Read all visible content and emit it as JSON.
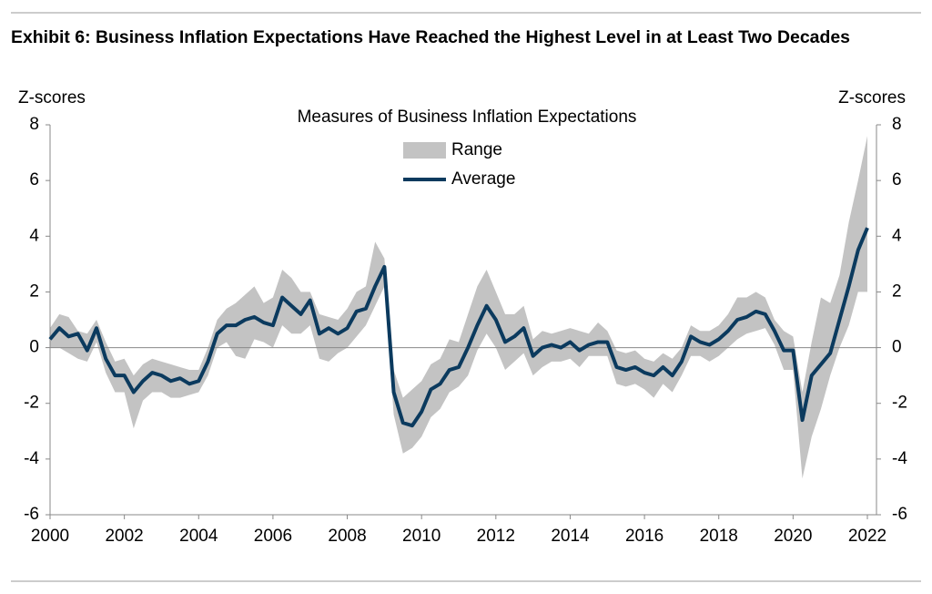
{
  "chart_data": {
    "type": "line",
    "title": "Exhibit 6: Business Inflation Expectations Have Reached the Highest Level in at Least Two Decades",
    "subtitle": "Measures of Business Inflation Expectations",
    "y_label": "Z-scores",
    "y2_label": "Z-scores",
    "x": [
      2000,
      2000.25,
      2000.5,
      2000.75,
      2001,
      2001.25,
      2001.5,
      2001.75,
      2002,
      2002.25,
      2002.5,
      2002.75,
      2003,
      2003.25,
      2003.5,
      2003.75,
      2004,
      2004.25,
      2004.5,
      2004.75,
      2005,
      2005.25,
      2005.5,
      2005.75,
      2006,
      2006.25,
      2006.5,
      2006.75,
      2007,
      2007.25,
      2007.5,
      2007.75,
      2008,
      2008.25,
      2008.5,
      2008.75,
      2009,
      2009.25,
      2009.5,
      2009.75,
      2010,
      2010.25,
      2010.5,
      2010.75,
      2011,
      2011.25,
      2011.5,
      2011.75,
      2012,
      2012.25,
      2012.5,
      2012.75,
      2013,
      2013.25,
      2013.5,
      2013.75,
      2014,
      2014.25,
      2014.5,
      2014.75,
      2015,
      2015.25,
      2015.5,
      2015.75,
      2016,
      2016.25,
      2016.5,
      2016.75,
      2017,
      2017.25,
      2017.5,
      2017.75,
      2018,
      2018.25,
      2018.5,
      2018.75,
      2019,
      2019.25,
      2019.5,
      2019.75,
      2020,
      2020.25,
      2020.5,
      2020.75,
      2021,
      2021.25,
      2021.5,
      2021.75,
      2022
    ],
    "series": [
      {
        "name": "Range",
        "color": "#c3c3c3",
        "high": [
          0.7,
          1.2,
          1.1,
          0.6,
          0.5,
          1.0,
          0.2,
          -0.5,
          -0.4,
          -1.0,
          -0.6,
          -0.4,
          -0.5,
          -0.6,
          -0.7,
          -0.8,
          -0.8,
          0.0,
          1.0,
          1.4,
          1.6,
          1.9,
          2.2,
          1.6,
          1.8,
          2.8,
          2.5,
          2.0,
          2.0,
          1.2,
          1.1,
          1.0,
          1.4,
          2.0,
          2.2,
          3.8,
          3.2,
          -0.8,
          -1.8,
          -1.5,
          -1.2,
          -0.6,
          -0.4,
          0.3,
          0.2,
          1.2,
          2.2,
          2.8,
          2.0,
          1.2,
          1.2,
          1.5,
          0.3,
          0.6,
          0.5,
          0.6,
          0.7,
          0.6,
          0.5,
          0.9,
          0.6,
          -0.1,
          -0.2,
          -0.1,
          -0.4,
          -0.5,
          -0.2,
          -0.4,
          0.0,
          0.8,
          0.6,
          0.6,
          0.8,
          1.2,
          1.8,
          1.8,
          2.0,
          1.8,
          1.0,
          0.6,
          0.4,
          -1.6,
          0.2,
          1.8,
          1.6,
          2.6,
          4.5,
          6.0,
          7.6
        ],
        "low": [
          0.0,
          0.0,
          -0.2,
          -0.4,
          -0.5,
          0.2,
          -0.9,
          -1.6,
          -1.6,
          -2.9,
          -1.9,
          -1.6,
          -1.6,
          -1.8,
          -1.8,
          -1.7,
          -1.6,
          -1.0,
          0.0,
          0.2,
          -0.3,
          -0.4,
          0.3,
          0.2,
          0.0,
          0.8,
          0.5,
          0.5,
          0.8,
          -0.4,
          -0.5,
          -0.2,
          0.0,
          0.4,
          0.8,
          1.5,
          2.2,
          -2.4,
          -3.8,
          -3.6,
          -3.2,
          -2.5,
          -2.2,
          -1.6,
          -1.4,
          -1.0,
          -0.1,
          0.5,
          0.0,
          -0.8,
          -0.5,
          -0.2,
          -1.0,
          -0.7,
          -0.5,
          -0.5,
          -0.4,
          -0.7,
          -0.3,
          -0.3,
          -0.3,
          -1.3,
          -1.4,
          -1.3,
          -1.5,
          -1.8,
          -1.3,
          -1.6,
          -1.0,
          -0.3,
          -0.3,
          -0.5,
          -0.3,
          0.0,
          0.3,
          0.5,
          0.6,
          0.7,
          0.1,
          -0.8,
          -0.8,
          -4.7,
          -3.2,
          -2.2,
          -1.0,
          0.0,
          0.8,
          2.0,
          2.0
        ]
      },
      {
        "name": "Average",
        "color": "#0b3a5e",
        "values": [
          0.3,
          0.7,
          0.4,
          0.5,
          -0.1,
          0.7,
          -0.4,
          -1.0,
          -1.0,
          -1.6,
          -1.2,
          -0.9,
          -1.0,
          -1.2,
          -1.1,
          -1.3,
          -1.2,
          -0.5,
          0.5,
          0.8,
          0.8,
          1.0,
          1.1,
          0.9,
          0.8,
          1.8,
          1.5,
          1.2,
          1.7,
          0.5,
          0.7,
          0.5,
          0.7,
          1.3,
          1.4,
          2.2,
          2.9,
          -1.6,
          -2.7,
          -2.8,
          -2.3,
          -1.5,
          -1.3,
          -0.8,
          -0.7,
          0.0,
          0.8,
          1.5,
          1.0,
          0.2,
          0.4,
          0.7,
          -0.3,
          0.0,
          0.1,
          0.0,
          0.2,
          -0.1,
          0.1,
          0.2,
          0.2,
          -0.7,
          -0.8,
          -0.7,
          -0.9,
          -1.0,
          -0.7,
          -1.0,
          -0.5,
          0.4,
          0.2,
          0.1,
          0.3,
          0.6,
          1.0,
          1.1,
          1.3,
          1.2,
          0.6,
          -0.1,
          -0.1,
          -2.6,
          -1.0,
          -0.6,
          -0.2,
          1.0,
          2.2,
          3.5,
          4.3
        ]
      }
    ],
    "xlim": [
      2000,
      2022
    ],
    "xticks": [
      2000,
      2002,
      2004,
      2006,
      2008,
      2010,
      2012,
      2014,
      2016,
      2018,
      2020,
      2022
    ],
    "ylim": [
      -6,
      8
    ],
    "yticks": [
      -6,
      -4,
      -2,
      0,
      2,
      4,
      6,
      8
    ],
    "y2lim": [
      -6,
      8
    ],
    "y2ticks": [
      -6,
      -4,
      -2,
      0,
      2,
      4,
      6,
      8
    ]
  }
}
